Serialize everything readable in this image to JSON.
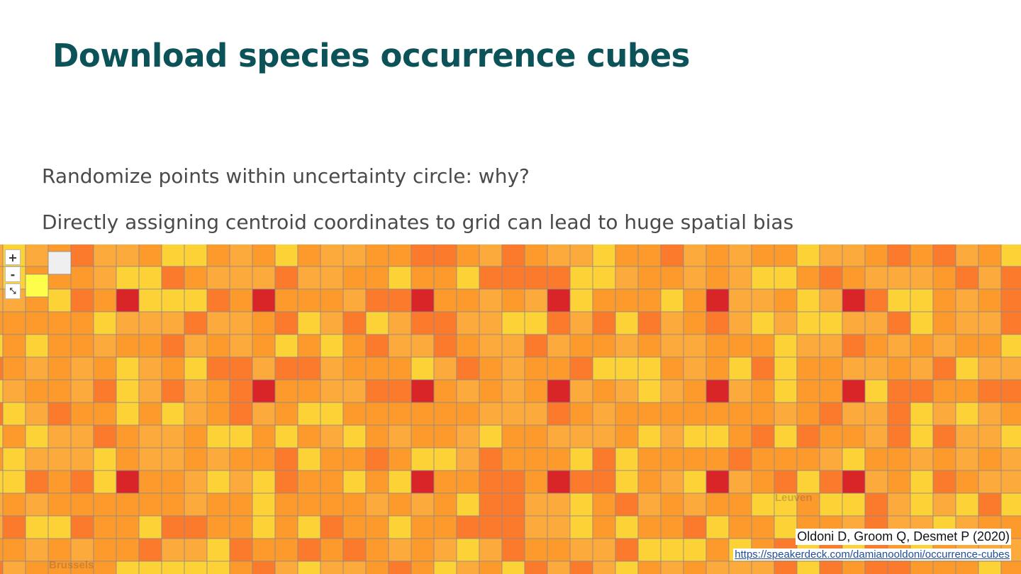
{
  "slide": {
    "title": "Download species occurrence cubes",
    "bullets": [
      "Randomize points within uncertainty circle: why?",
      "Directly assigning centroid coordinates to grid can lead to huge spatial bias"
    ]
  },
  "map": {
    "controls": {
      "zoom_in": "+",
      "zoom_out": "-",
      "fit": "⤡"
    },
    "place_labels": [
      "Leuven",
      "Brussels"
    ],
    "palette": {
      "light_yellow": "#fdfd4a",
      "yellow": "#fdd237",
      "light_orange": "#fdaa3c",
      "orange": "#fd9a2c",
      "dark_orange": "#fb7a2c",
      "red": "#d92428",
      "grid_line": "#8a8a8a"
    }
  },
  "credit": {
    "citation": "Oldoni D, Groom Q, Desmet P (2020)",
    "url": "https://speakerdeck.com/damianooldoni/occurrence-cubes"
  }
}
